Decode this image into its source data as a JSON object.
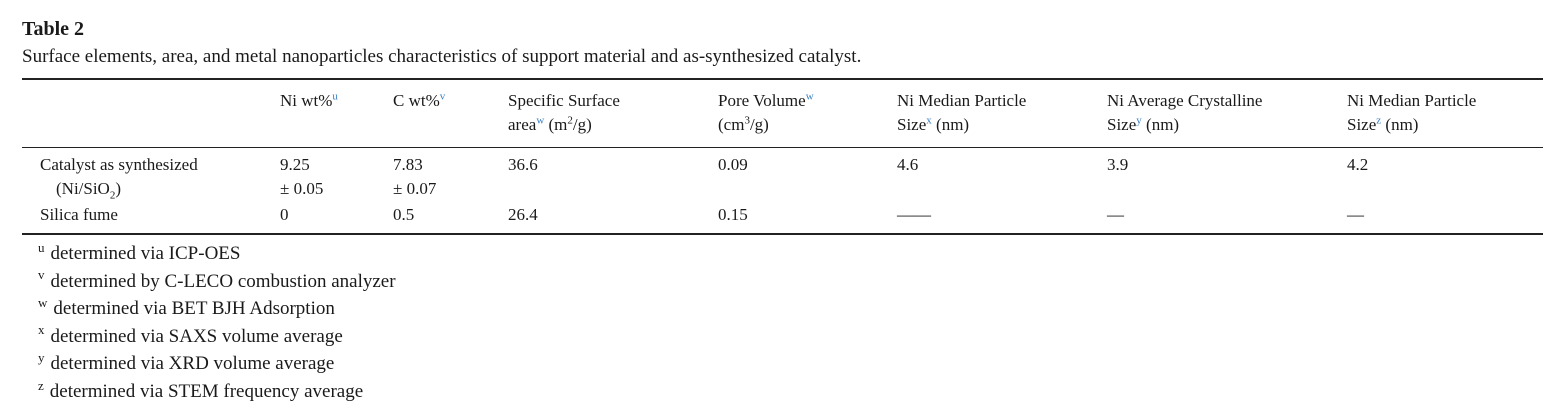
{
  "header": {
    "title": "Table 2",
    "caption": "Surface elements, area, and metal nanoparticles characteristics of support material and as-synthesized catalyst."
  },
  "table": {
    "columns": [
      [],
      [
        [
          {
            "text": "Ni wt%"
          },
          {
            "text": "u",
            "kind": "sup-link"
          }
        ]
      ],
      [
        [
          {
            "text": "C wt%"
          },
          {
            "text": "v",
            "kind": "sup-link"
          }
        ]
      ],
      [
        [
          {
            "text": "Specific Surface"
          }
        ],
        [
          {
            "text": "area"
          },
          {
            "text": "w",
            "kind": "sup-link"
          },
          {
            "text": " (m"
          },
          {
            "text": "2",
            "kind": "sup"
          },
          {
            "text": "/g)"
          }
        ]
      ],
      [
        [
          {
            "text": "Pore Volume"
          },
          {
            "text": "w",
            "kind": "sup-link"
          }
        ],
        [
          {
            "text": "(cm"
          },
          {
            "text": "3",
            "kind": "sup"
          },
          {
            "text": "/g)"
          }
        ]
      ],
      [
        [
          {
            "text": "Ni Median Particle"
          }
        ],
        [
          {
            "text": "Size"
          },
          {
            "text": "x",
            "kind": "sup-link"
          },
          {
            "text": " (nm)"
          }
        ]
      ],
      [
        [
          {
            "text": "Ni Average Crystalline"
          }
        ],
        [
          {
            "text": "Size"
          },
          {
            "text": "y",
            "kind": "sup-link"
          },
          {
            "text": " (nm)"
          }
        ]
      ],
      [
        [
          {
            "text": "Ni Median Particle"
          }
        ],
        [
          {
            "text": "Size"
          },
          {
            "text": "z",
            "kind": "sup-link"
          },
          {
            "text": " (nm)"
          }
        ]
      ]
    ],
    "rows": [
      [
        [
          [
            {
              "text": "Catalyst as synthesized"
            }
          ],
          [
            {
              "text": "(Ni/SiO"
            },
            {
              "text": "2",
              "kind": "sub"
            },
            {
              "text": ")"
            }
          ]
        ],
        [
          [
            {
              "text": "9.25"
            }
          ],
          [
            {
              "text": "± 0.05"
            }
          ]
        ],
        [
          [
            {
              "text": "7.83"
            }
          ],
          [
            {
              "text": "± 0.07"
            }
          ]
        ],
        [
          [
            {
              "text": "36.6"
            }
          ]
        ],
        [
          [
            {
              "text": "0.09"
            }
          ]
        ],
        [
          [
            {
              "text": "4.6"
            }
          ]
        ],
        [
          [
            {
              "text": "3.9"
            }
          ]
        ],
        [
          [
            {
              "text": "4.2"
            }
          ]
        ]
      ],
      [
        [
          [
            {
              "text": "Silica fume"
            }
          ]
        ],
        [
          [
            {
              "text": "0"
            }
          ]
        ],
        [
          [
            {
              "text": "0.5"
            }
          ]
        ],
        [
          [
            {
              "text": "26.4"
            }
          ]
        ],
        [
          [
            {
              "text": "0.15"
            }
          ]
        ],
        [
          [
            {
              "text": "——"
            }
          ]
        ],
        [
          [
            {
              "text": "—"
            }
          ]
        ],
        [
          [
            {
              "text": "—"
            }
          ]
        ]
      ]
    ]
  },
  "footnotes": [
    {
      "mark": "u",
      "text": "determined via ICP-OES"
    },
    {
      "mark": "v",
      "text": "determined by C-LECO combustion analyzer"
    },
    {
      "mark": "w",
      "text": "determined via BET BJH Adsorption"
    },
    {
      "mark": "x",
      "text": "determined via SAXS volume average"
    },
    {
      "mark": "y",
      "text": "determined via XRD volume average"
    },
    {
      "mark": "z",
      "text": "determined via STEM frequency average"
    }
  ]
}
